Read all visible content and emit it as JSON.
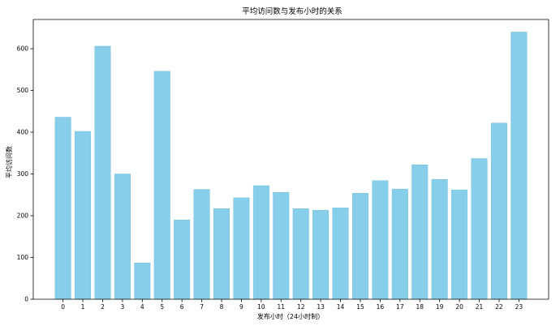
{
  "chart_data": {
    "type": "bar",
    "title": "平均访问数与发布小时的关系",
    "xlabel": "发布小时（24小时制）",
    "ylabel": "平均访问数",
    "categories": [
      "0",
      "1",
      "2",
      "3",
      "4",
      "5",
      "6",
      "7",
      "8",
      "9",
      "10",
      "11",
      "12",
      "13",
      "14",
      "15",
      "16",
      "17",
      "18",
      "19",
      "20",
      "21",
      "22",
      "23"
    ],
    "values": [
      436,
      402,
      606,
      300,
      87,
      546,
      190,
      263,
      217,
      243,
      272,
      256,
      217,
      213,
      219,
      254,
      284,
      264,
      322,
      287,
      262,
      337,
      422,
      640
    ],
    "ylim": [
      0,
      670
    ],
    "yticks": [
      0,
      100,
      200,
      300,
      400,
      500,
      600
    ],
    "grid": false,
    "bar_color": "#87ceeb",
    "bar_edge_color": "#6cb8d8"
  }
}
